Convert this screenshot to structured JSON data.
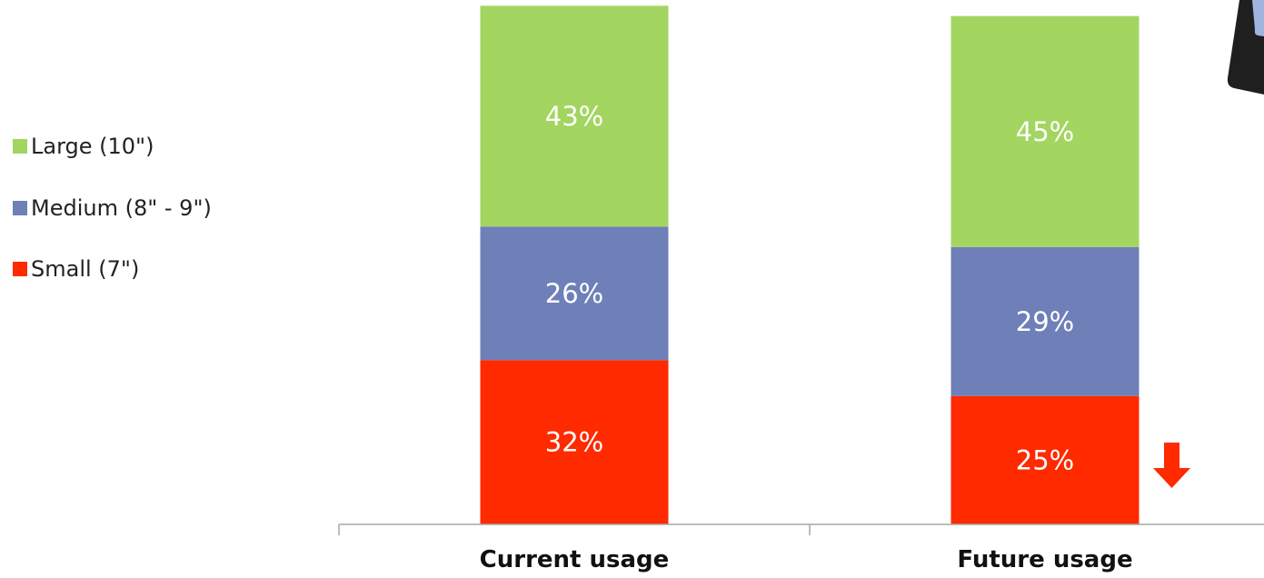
{
  "chart_data": {
    "type": "bar",
    "stacked": true,
    "categories": [
      "Current usage",
      "Future usage"
    ],
    "series": [
      {
        "name": "Small (7\")",
        "values": [
          32,
          25
        ],
        "labels": [
          "32%",
          "25%"
        ],
        "color": "#ff2a00"
      },
      {
        "name": "Medium (8\" - 9\")",
        "values": [
          26,
          29
        ],
        "labels": [
          "26%",
          "29%"
        ],
        "color": "#6f7fb8"
      },
      {
        "name": "Large (10\")",
        "values": [
          43,
          45
        ],
        "labels": [
          "43%",
          "45%"
        ],
        "color": "#a3d561"
      }
    ],
    "legend": [
      {
        "label": "Large (10\")",
        "color": "#a3d561"
      },
      {
        "label": "Medium (8\" - 9\")",
        "color": "#6f7fb8"
      },
      {
        "label": "Small (7\")",
        "color": "#ff2a00"
      }
    ],
    "legend_position": "left",
    "annotations": [
      {
        "type": "down-arrow",
        "category": "Future usage",
        "series": "Small (7\")",
        "color": "#ff2a00"
      }
    ],
    "title": "",
    "xlabel": "",
    "ylabel": "",
    "grid": false,
    "axis_color": "#a6a6a6",
    "label_color": "#ffffff"
  }
}
